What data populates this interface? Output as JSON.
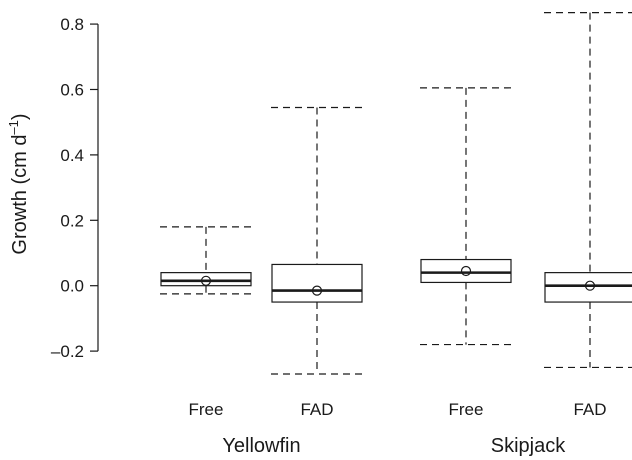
{
  "chart_data": {
    "type": "box",
    "ylabel": "Growth (cm d",
    "ylabel_sup": "–1",
    "ylabel_close": ")",
    "ylim": [
      -0.27,
      0.84
    ],
    "y_ticks": [
      -0.2,
      0.0,
      0.2,
      0.4,
      0.6,
      0.8
    ],
    "y_tick_labels": [
      "–0.2",
      "0.0",
      "0.2",
      "0.4",
      "0.6",
      "0.8"
    ],
    "grid": false,
    "groups": [
      {
        "label": "Yellowfin",
        "categories": [
          "Free",
          "FAD"
        ]
      },
      {
        "label": "Skipjack",
        "categories": [
          "Free",
          "FAD"
        ]
      }
    ],
    "boxes": [
      {
        "species": "Yellowfin",
        "category": "Free",
        "whisker_low": -0.025,
        "q1": 0.0,
        "median": 0.015,
        "q3": 0.04,
        "whisker_high": 0.18,
        "mean": 0.015
      },
      {
        "species": "Yellowfin",
        "category": "FAD",
        "whisker_low": -0.27,
        "q1": -0.05,
        "median": -0.015,
        "q3": 0.065,
        "whisker_high": 0.545,
        "mean": -0.015
      },
      {
        "species": "Skipjack",
        "category": "Free",
        "whisker_low": -0.18,
        "q1": 0.01,
        "median": 0.04,
        "q3": 0.08,
        "whisker_high": 0.605,
        "mean": 0.045
      },
      {
        "species": "Skipjack",
        "category": "FAD",
        "whisker_low": -0.25,
        "q1": -0.05,
        "median": 0.0,
        "q3": 0.04,
        "whisker_high": 0.835,
        "mean": 0.0
      }
    ]
  }
}
